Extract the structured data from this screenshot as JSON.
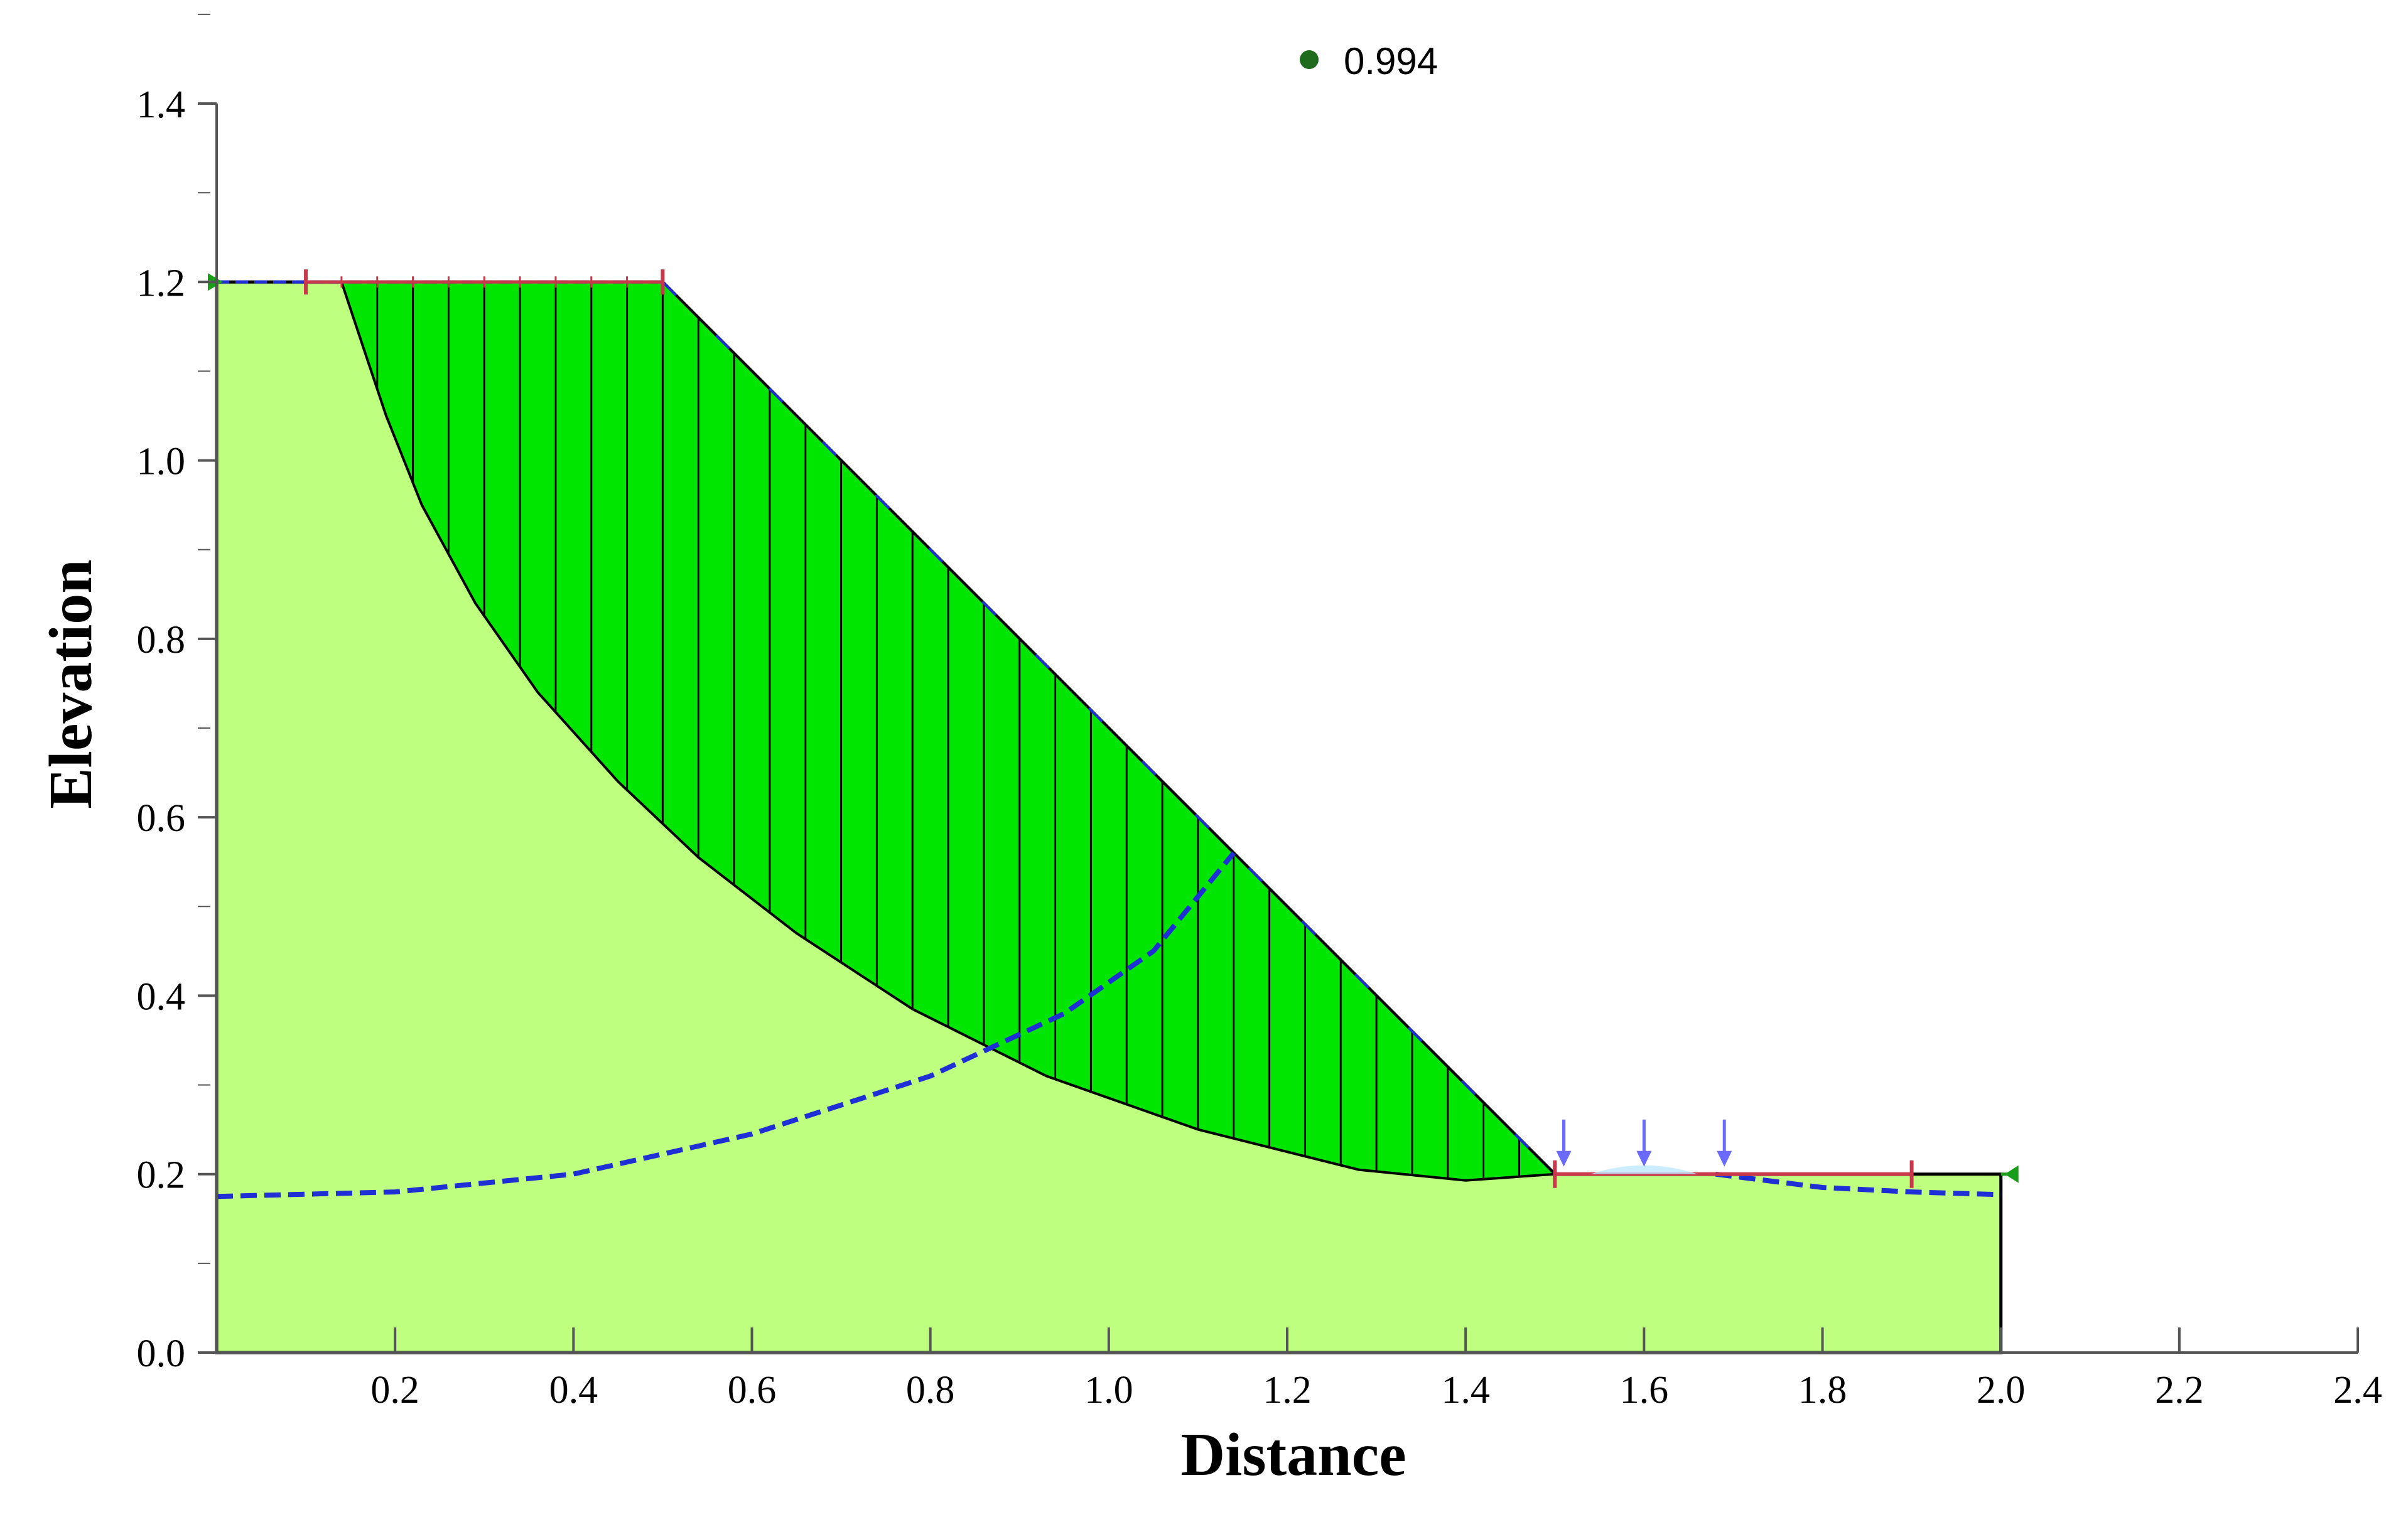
{
  "chart_data": {
    "type": "area",
    "title": "",
    "xlabel": "Distance",
    "ylabel": "Elevation",
    "xlim": [
      0,
      2.4
    ],
    "ylim": [
      0,
      1.4
    ],
    "x_ticks": [
      "0.2",
      "0.4",
      "0.6",
      "0.8",
      "1.0",
      "1.2",
      "1.4",
      "1.6",
      "1.8",
      "2.0",
      "2.2",
      "2.4"
    ],
    "y_ticks": [
      "0.0",
      "0.2",
      "0.4",
      "0.6",
      "0.8",
      "1.0",
      "1.2",
      "1.4"
    ],
    "grid": false,
    "factor_of_safety": {
      "value": "0.994",
      "color": "#1e6b1e"
    },
    "ground_profile": {
      "points": [
        [
          0,
          1.2
        ],
        [
          0.5,
          1.2
        ],
        [
          1.5,
          0.2
        ],
        [
          2.0,
          0.2
        ],
        [
          2.0,
          0.0
        ],
        [
          0,
          0.0
        ]
      ],
      "color": "#bfff7f"
    },
    "slip_surface": {
      "color": "#00e600",
      "slice_count": 34,
      "points": [
        [
          0.14,
          1.2
        ],
        [
          0.17,
          1.11
        ],
        [
          0.19,
          1.05
        ],
        [
          0.23,
          0.95
        ],
        [
          0.29,
          0.84
        ],
        [
          0.36,
          0.74
        ],
        [
          0.45,
          0.64
        ],
        [
          0.54,
          0.555
        ],
        [
          0.65,
          0.47
        ],
        [
          0.78,
          0.385
        ],
        [
          0.93,
          0.31
        ],
        [
          1.1,
          0.25
        ],
        [
          1.28,
          0.205
        ],
        [
          1.4,
          0.193
        ],
        [
          1.5,
          0.2
        ]
      ]
    },
    "water_table": {
      "color": "#1f2fd6",
      "points": [
        [
          0,
          0.175
        ],
        [
          0.2,
          0.18
        ],
        [
          0.4,
          0.2
        ],
        [
          0.6,
          0.245
        ],
        [
          0.8,
          0.31
        ],
        [
          0.95,
          0.38
        ],
        [
          1.05,
          0.45
        ],
        [
          1.14,
          0.56
        ]
      ],
      "points_right": [
        [
          1.68,
          0.2
        ],
        [
          1.8,
          0.185
        ],
        [
          1.9,
          0.18
        ],
        [
          2.0,
          0.177
        ]
      ]
    },
    "entry_range": {
      "x": [
        0.1,
        0.5
      ],
      "color": "#c8384a"
    },
    "exit_range": {
      "x": [
        1.5,
        1.9
      ],
      "color": "#c8384a"
    },
    "surcharge_arrows": {
      "x": [
        1.51,
        1.6,
        1.69
      ],
      "color": "#6a6aff"
    }
  }
}
